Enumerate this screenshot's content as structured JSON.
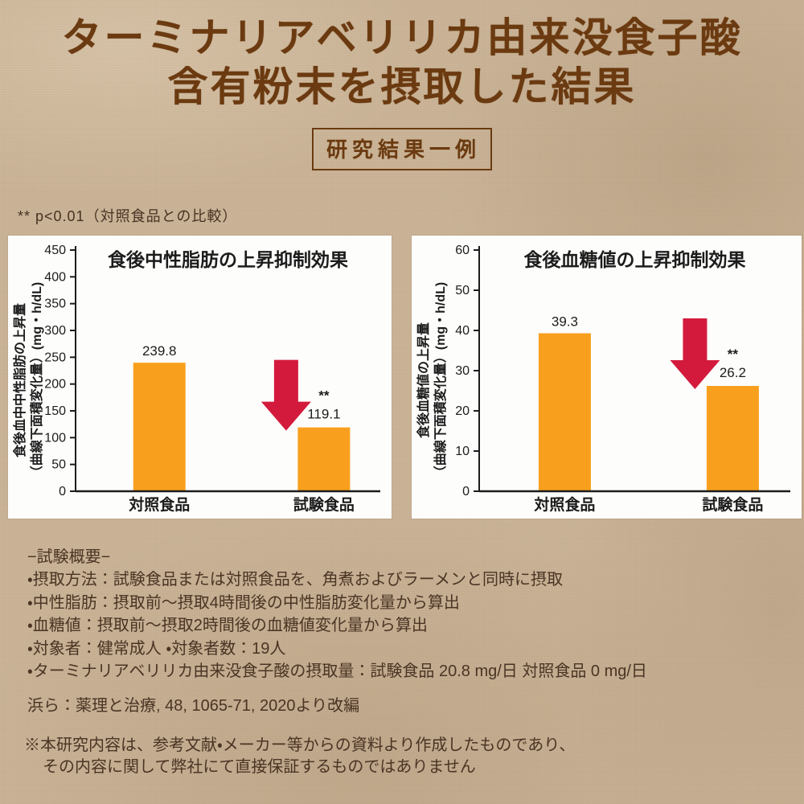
{
  "colors": {
    "background": "#c9b295",
    "title_brown": "#6b3a10",
    "body_text_brown": "#4a3424",
    "panel_bg": "#fdfdfb",
    "bar_orange": "#f8a01d",
    "arrow_red": "#d31a3c",
    "chart_text": "#1c1c1c"
  },
  "header": {
    "title_line1": "ターミナリアベリリカ由来没食子酸",
    "title_line2": "含有粉末を摂取した結果",
    "badge": "研究結果一例"
  },
  "note": "**  p<0.01（対照食品との比較）",
  "chart_data": [
    {
      "type": "bar",
      "title": "食後中性脂肪の上昇抑制効果",
      "ylabel_line1": "食後血中中性脂肪の上昇量",
      "ylabel_line2": "（曲線下面積変化量）(mg・h/dL)",
      "categories": [
        "対照食品",
        "試験食品"
      ],
      "values": [
        239.8,
        119.1
      ],
      "value_labels": [
        "239.8",
        "119.1"
      ],
      "significance_marker": "**",
      "significance_bar": 1,
      "arrow_on_bar": 1,
      "ylim": [
        0,
        450
      ],
      "ytick_step": 50,
      "grid": false,
      "legend": false
    },
    {
      "type": "bar",
      "title": "食後血糖値の上昇抑制効果",
      "ylabel_line1": "食後血糖値の上昇量",
      "ylabel_line2": "（曲線下面積変化量）(mg・h/dL)",
      "categories": [
        "対照食品",
        "試験食品"
      ],
      "values": [
        39.3,
        26.2
      ],
      "value_labels": [
        "39.3",
        "26.2"
      ],
      "significance_marker": "**",
      "significance_bar": 1,
      "arrow_on_bar": 1,
      "ylim": [
        0,
        60
      ],
      "ytick_step": 10,
      "grid": false,
      "legend": false
    }
  ],
  "overview": {
    "heading": "−試験概要−",
    "lines": [
      "・摂取方法：試験食品または対照食品を、角煮およびラーメンと同時に摂取",
      "・中性脂肪：摂取前～摂取4時間後の中性脂肪変化量から算出",
      "・血糖値：摂取前～摂取2時間後の血糖値変化量から算出",
      "・対象者：健常成人 ・対象者数：19人",
      "・ターミナリアベリリカ由来没食子酸の摂取量：試験食品 20.8 mg/日 対照食品 0 mg/日"
    ]
  },
  "citation": "浜ら：薬理と治療, 48, 1065-71, 2020より改編",
  "disclaimer": {
    "line1": "※本研究内容は、参考文献・メーカー等からの資料より作成したものであり、",
    "line2": "その内容に関して弊社にて直接保証するものではありません"
  }
}
